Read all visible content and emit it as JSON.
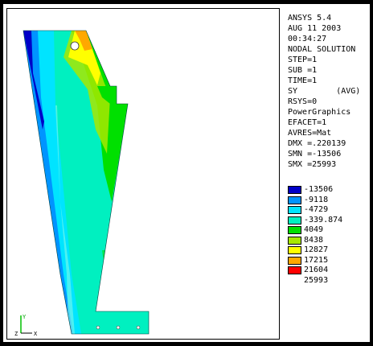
{
  "info_lines": [
    "ANSYS 5.4",
    "AUG 11 2003",
    "00:34:27",
    "NODAL SOLUTION",
    "STEP=1",
    "SUB =1",
    "TIME=1",
    "SY        (AVG)",
    "RSYS=0",
    "PowerGraphics",
    "EFACET=1",
    "AVRES=Mat",
    "DMX =.220139",
    "SMN =-13506",
    "SMX =25993"
  ],
  "legend": [
    {
      "label": "-13506",
      "color": "#0000c8"
    },
    {
      "label": "-9118",
      "color": "#0094ff"
    },
    {
      "label": "-4729",
      "color": "#00e4ff"
    },
    {
      "label": "-339.874",
      "color": "#00f0c0"
    },
    {
      "label": "4049",
      "color": "#00e000"
    },
    {
      "label": "8438",
      "color": "#a8e800"
    },
    {
      "label": "12827",
      "color": "#ffff00"
    },
    {
      "label": "17215",
      "color": "#ffa800"
    },
    {
      "label": "21604",
      "color": "#ff0000"
    },
    {
      "label": "25993",
      "color": ""
    }
  ],
  "triad": {
    "y_label": "Y",
    "z_label": "Z",
    "x_label": "X"
  }
}
